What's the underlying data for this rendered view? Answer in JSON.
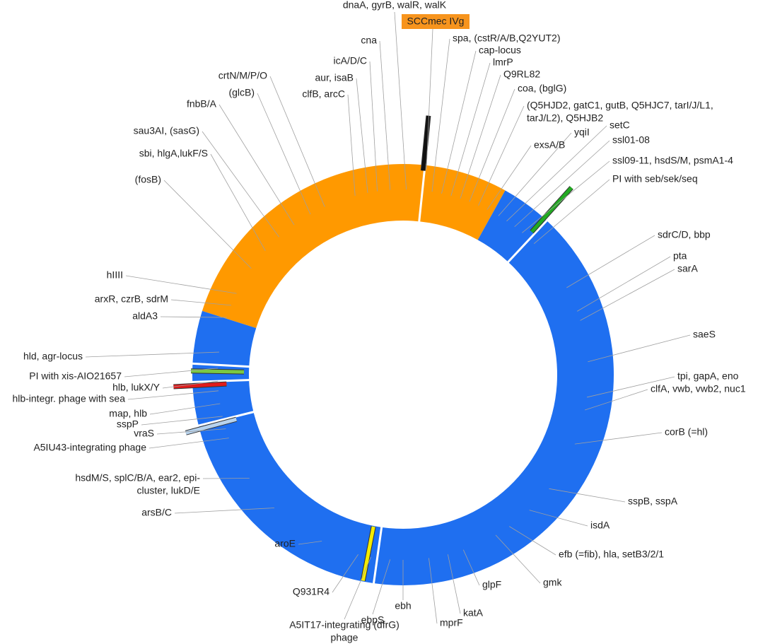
{
  "highlight": "SCCmec IVg",
  "labels": [
    "dnaA, gyrB, walR, walK",
    "spa, (cstR/A/B,Q2YUT2)",
    "cap-locus",
    "lmrP",
    "Q9RL82",
    "coa, (bglG)",
    "(Q5HJD2, gatC1, gutB, Q5HJC7, tarI/J/L1,",
    "tarJ/L2), Q5HJB2",
    "yqiI",
    "exsA/B",
    "setC",
    "ssl01-08",
    "ssl09-11, hsdS/M, psmA1-4",
    "PI with seb/sek/seq",
    "sdrC/D, bbp",
    "pta",
    "sarA",
    "saeS",
    "tpi, gapA, eno",
    "clfA, vwb, vwb2, nuc1",
    "corB (=hl)",
    "sspB, sspA",
    "isdA",
    "efb (=fib), hla, setB3/2/1",
    "gmk",
    "glpF",
    "katA",
    "mprF",
    "ebh",
    "ebpS",
    "A5IT17-integrating (dfrG)",
    "phage",
    "Q931R4",
    "aroE",
    "arsB/C",
    "hsdM/S, splC/B/A, ear2, epi-",
    "cluster, lukD/E",
    "A5IU43-integrating phage",
    "vraS",
    "sspP",
    "map, hlb",
    "hlb-integr. phage with sea",
    "hlb, lukX/Y",
    "PI with xis-AIO21657",
    "hld, agr-locus",
    "aldA3",
    "arxR, czrB, sdrM",
    "hIIII",
    "(fosB)",
    "sbi, hlgA,lukF/S",
    "sau3AI, (sasG)",
    "fnbB/A",
    "(glcB)",
    "crtN/M/P/O",
    "clfB, arcC",
    "aur, isaB",
    "icA/D/C",
    "cna"
  ]
}
